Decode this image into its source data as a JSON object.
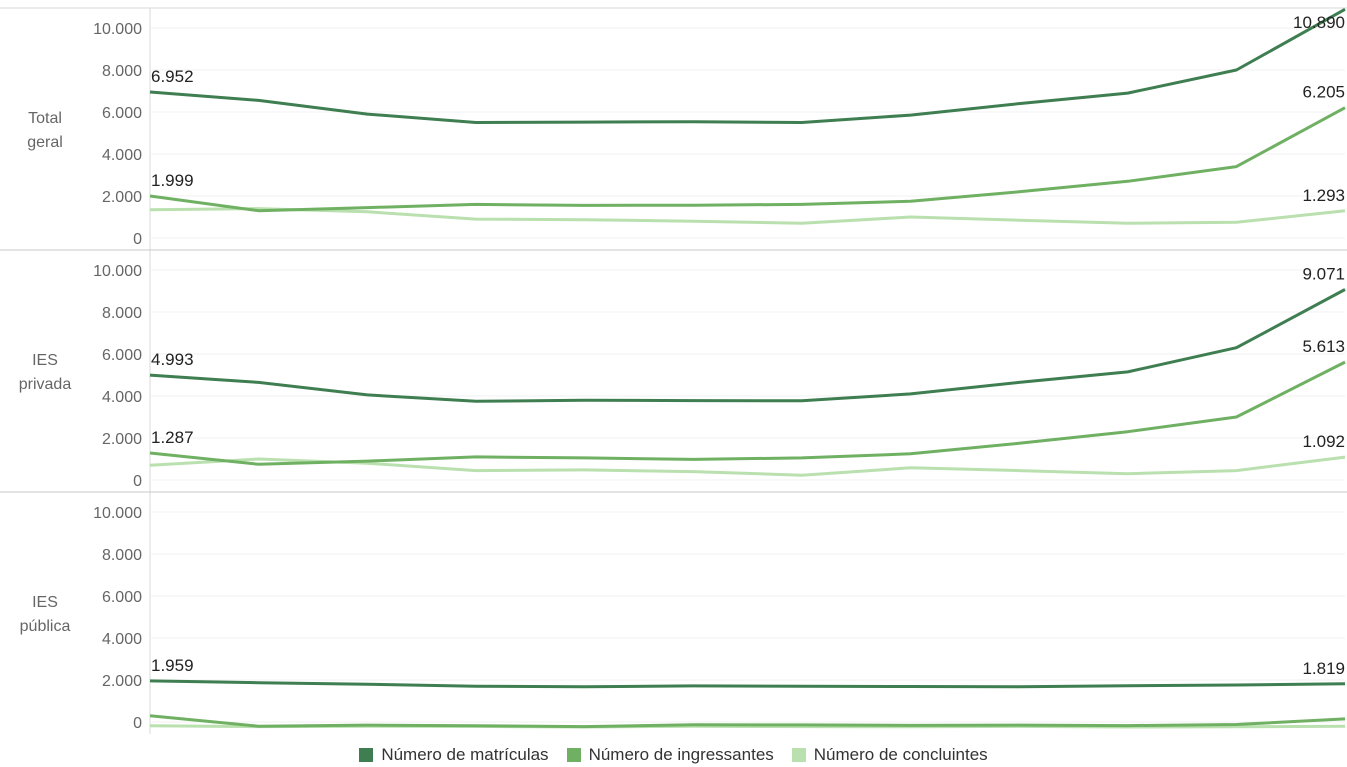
{
  "chart_data": {
    "type": "line",
    "x_count": 12,
    "ylim": [
      0,
      11000
    ],
    "yticks": [
      0,
      2000,
      4000,
      6000,
      8000,
      10000
    ],
    "ytick_labels": [
      "0",
      "2.000",
      "4.000",
      "6.000",
      "8.000",
      "10.000"
    ],
    "grid": true,
    "legend_position": "bottom",
    "colors": {
      "matriculas": "#3f7e51",
      "ingressantes": "#6fb063",
      "concluintes": "#b9e0ae"
    },
    "legend": [
      {
        "key": "matriculas",
        "label": "Número de matrículas"
      },
      {
        "key": "ingressantes",
        "label": "Número de ingressantes"
      },
      {
        "key": "concluintes",
        "label": "Número de concluintes"
      }
    ],
    "panels": [
      {
        "label": [
          "Total",
          "geral"
        ],
        "series": {
          "matriculas": [
            6952,
            6550,
            5900,
            5500,
            5520,
            5540,
            5500,
            5850,
            6400,
            6900,
            8000,
            10890
          ],
          "ingressantes": [
            1999,
            1300,
            1450,
            1600,
            1550,
            1560,
            1600,
            1750,
            2200,
            2700,
            3400,
            6205
          ],
          "concluintes": [
            1350,
            1400,
            1250,
            900,
            870,
            800,
            700,
            1000,
            850,
            700,
            750,
            1293
          ]
        },
        "data_labels": {
          "matriculas": {
            "first": "6.952",
            "last": "10.890"
          },
          "ingressantes": {
            "first": "1.999",
            "last": "6.205"
          },
          "concluintes": {
            "first": "",
            "last": "1.293"
          }
        }
      },
      {
        "label": [
          "IES",
          "privada"
        ],
        "series": {
          "matriculas": [
            4993,
            4650,
            4050,
            3750,
            3800,
            3780,
            3770,
            4100,
            4650,
            5150,
            6300,
            9071
          ],
          "ingressantes": [
            1287,
            750,
            900,
            1100,
            1050,
            980,
            1050,
            1250,
            1750,
            2300,
            3000,
            5613
          ],
          "concluintes": [
            700,
            1000,
            800,
            450,
            480,
            400,
            230,
            580,
            450,
            300,
            450,
            1092
          ]
        },
        "data_labels": {
          "matriculas": {
            "first": "4.993",
            "last": "9.071"
          },
          "ingressantes": {
            "first": "1.287",
            "last": "5.613"
          },
          "concluintes": {
            "first": "",
            "last": "1.092"
          }
        }
      },
      {
        "label": [
          "IES",
          "pública"
        ],
        "series": {
          "matriculas": [
            1959,
            1870,
            1800,
            1700,
            1680,
            1720,
            1700,
            1690,
            1680,
            1730,
            1760,
            1819
          ],
          "ingressantes": [
            300,
            -200,
            -150,
            -180,
            -220,
            -130,
            -140,
            -160,
            -150,
            -170,
            -120,
            150
          ],
          "concluintes": [
            -180,
            -220,
            -200,
            -210,
            -240,
            -200,
            -220,
            -230,
            -210,
            -240,
            -230,
            -200
          ]
        },
        "data_labels": {
          "matriculas": {
            "first": "1.959",
            "last": "1.819"
          },
          "ingressantes": {
            "first": "",
            "last": ""
          },
          "concluintes": {
            "first": "",
            "last": ""
          }
        }
      }
    ]
  }
}
